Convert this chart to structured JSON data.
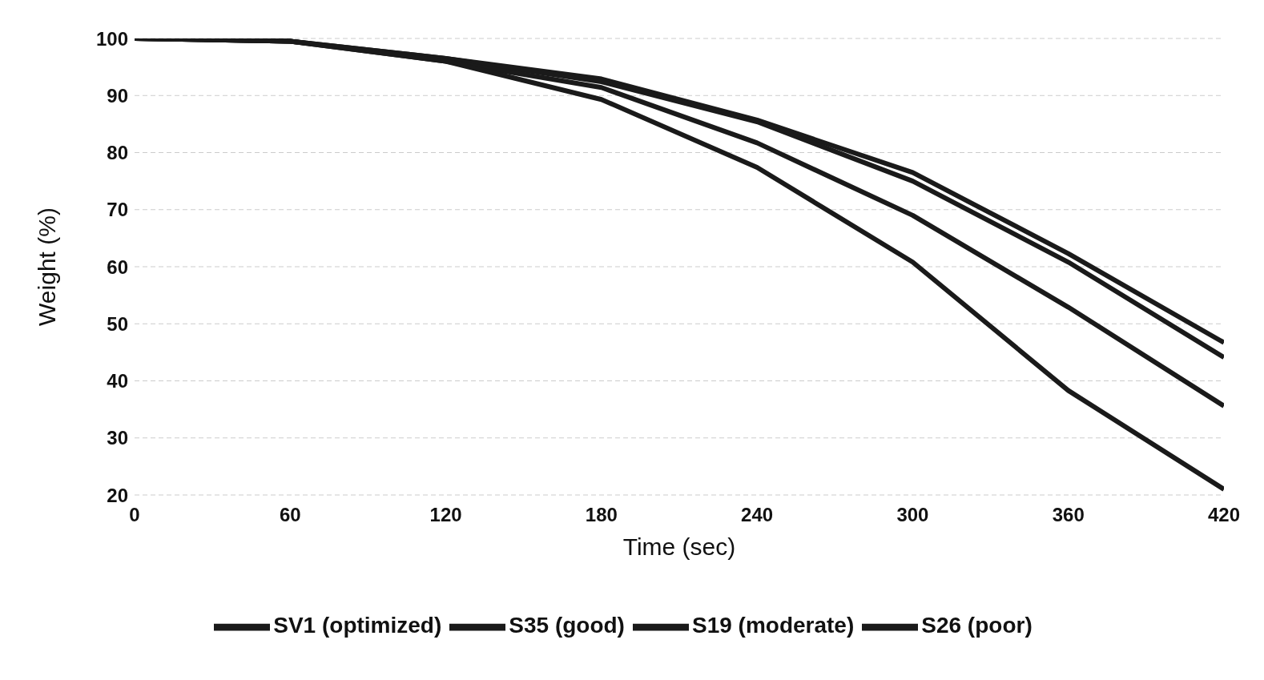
{
  "chart_data": {
    "type": "line",
    "xlabel": "Time (sec)",
    "ylabel": "Weight (%)",
    "x": [
      0,
      60,
      120,
      180,
      240,
      300,
      360,
      420
    ],
    "series": [
      {
        "name": "SV1 (optimized)",
        "color": "#1a1a1a",
        "values": [
          100,
          99.5,
          96.5,
          92.9,
          85.7,
          76.5,
          62.3,
          46.7
        ]
      },
      {
        "name": "S35 (good)",
        "color": "#1a1a1a",
        "values": [
          100,
          99.5,
          96.5,
          92.4,
          85.4,
          75,
          60.8,
          44.1
        ]
      },
      {
        "name": "S19 (moderate)",
        "color": "#1a1a1a",
        "values": [
          100,
          99.5,
          96,
          91.4,
          81.7,
          69,
          52.9,
          35.6
        ]
      },
      {
        "name": "S26 (poor)",
        "color": "#1a1a1a",
        "values": [
          100,
          99.5,
          96,
          89.3,
          77.4,
          60.8,
          38.3,
          21
        ]
      }
    ],
    "xlim": [
      0,
      420
    ],
    "xticks": [
      0,
      60,
      120,
      180,
      240,
      300,
      360,
      420
    ],
    "ylim": [
      20,
      100
    ],
    "yticks": [
      20,
      30,
      40,
      50,
      60,
      70,
      80,
      90,
      100
    ],
    "grid": "y",
    "legend": "bottom",
    "marker": "none",
    "line_style": "solid"
  }
}
